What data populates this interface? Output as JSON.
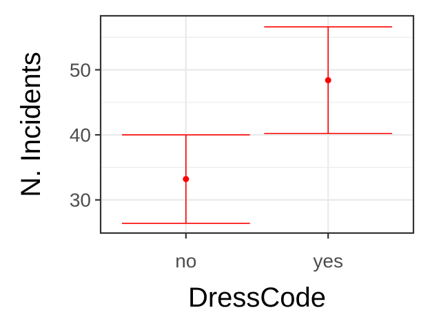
{
  "chart_data": {
    "type": "errorbar",
    "xlabel": "DressCode",
    "ylabel": "N. Incidents",
    "categories": [
      "no",
      "yes"
    ],
    "series": [
      {
        "values": [
          33.2,
          48.4
        ],
        "lower": [
          26.4,
          40.2
        ],
        "upper": [
          40.0,
          56.6
        ]
      }
    ],
    "ylim": [
      24.9,
      58.3
    ],
    "yticks": [
      30,
      40,
      50
    ],
    "grid": true,
    "colors": {
      "mark": "#ff0000",
      "grid": "#ebebeb",
      "panel_border": "#333333",
      "tick_text": "#4d4d4d"
    }
  }
}
